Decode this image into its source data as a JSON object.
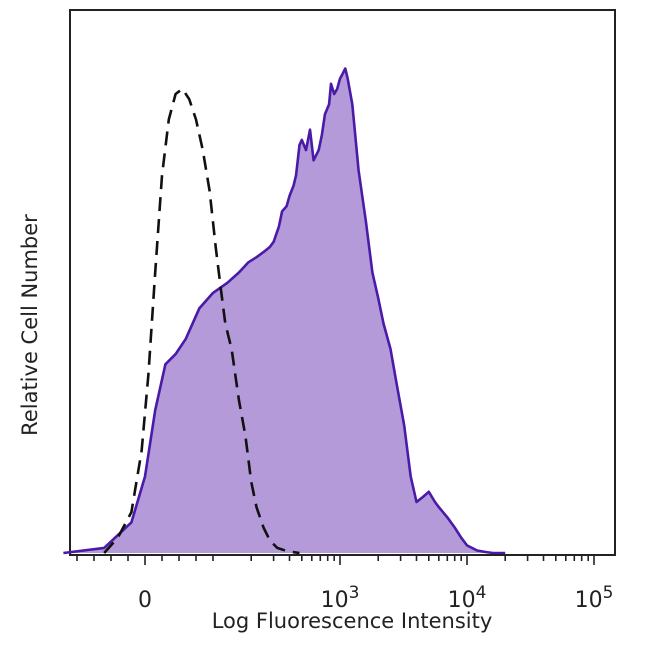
{
  "chart_data": {
    "type": "area",
    "title": "",
    "xlabel": "Log Fluorescence Intensity",
    "ylabel": "Relative Cell Number",
    "x_scale": "biexponential",
    "xlim": [
      -200,
      200000
    ],
    "ylim": [
      0,
      100
    ],
    "grid": false,
    "legend": "none",
    "x_ticks": [
      {
        "value": 0,
        "base": "0",
        "exp": ""
      },
      {
        "value": 1000,
        "base": "10",
        "exp": "3"
      },
      {
        "value": 10000,
        "base": "10",
        "exp": "4"
      },
      {
        "value": 100000,
        "base": "10",
        "exp": "5"
      }
    ],
    "series": [
      {
        "style": "filled",
        "fill_color": "#b49ad9",
        "line_color": "#4a1aa8",
        "x": [
          -120,
          -60,
          -20,
          0,
          15,
          30,
          45,
          60,
          80,
          100,
          130,
          160,
          190,
          220,
          250,
          280,
          300,
          330,
          350,
          380,
          400,
          430,
          450,
          480,
          500,
          540,
          580,
          620,
          680,
          720,
          760,
          820,
          850,
          900,
          950,
          1000,
          1050,
          1100,
          1150,
          1250,
          1400,
          1600,
          1800,
          2000,
          2200,
          2500,
          2800,
          3200,
          3600,
          4000,
          4500,
          5000,
          5600,
          6000,
          7000,
          8000,
          9000,
          10000,
          12000,
          14000,
          16000,
          20000
        ],
        "y": [
          0,
          1,
          6,
          15,
          28,
          37,
          39,
          42,
          48,
          51,
          53,
          55,
          57,
          58,
          59,
          60,
          61,
          64,
          67,
          68,
          70,
          72,
          74,
          80,
          81,
          79,
          83,
          77,
          79,
          82,
          86,
          88,
          92,
          90,
          91,
          93,
          94,
          95,
          93,
          88,
          75,
          65,
          55,
          50,
          45,
          40,
          33,
          25,
          15,
          10,
          11,
          12,
          10,
          9,
          7,
          5,
          3,
          1.5,
          0.5,
          0.2,
          0,
          0
        ]
      },
      {
        "style": "dashed",
        "line_color": "#111111",
        "x": [
          -60,
          -40,
          -20,
          -5,
          5,
          15,
          25,
          35,
          45,
          55,
          65,
          75,
          85,
          95,
          105,
          115,
          125,
          140,
          160,
          180,
          200,
          220,
          250,
          280,
          320,
          370,
          420,
          480
        ],
        "y": [
          0,
          3,
          8,
          20,
          35,
          55,
          74,
          85,
          90,
          91,
          89,
          85,
          79,
          71,
          60,
          52,
          45,
          40,
          30,
          23,
          14,
          9,
          5,
          2.5,
          1,
          0.5,
          0.2,
          0
        ]
      }
    ]
  }
}
